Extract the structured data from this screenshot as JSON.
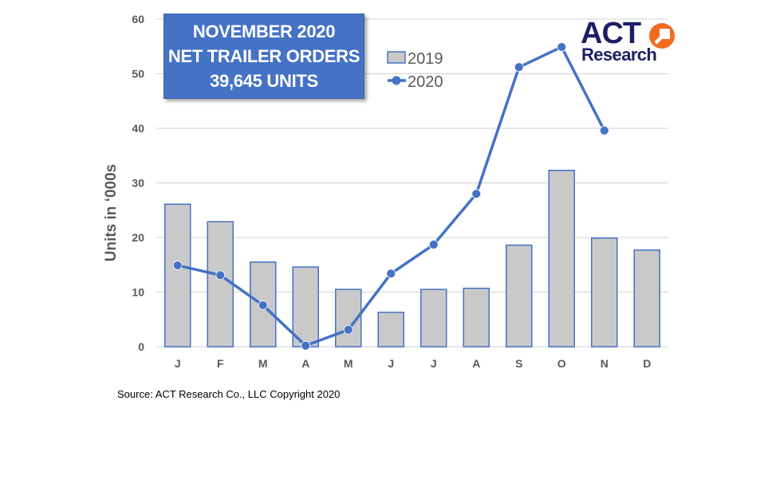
{
  "title_box": {
    "line1": "NOVEMBER 2020",
    "line2": "NET TRAILER ORDERS",
    "line3": "39,645 UNITS"
  },
  "logo": {
    "top": "ACT",
    "bottom": "Research",
    "icon": "arrow-circle-icon"
  },
  "source": "Source: ACT Research Co., LLC  Copyright 2020",
  "colors": {
    "bar_fill": "#C9C9C9",
    "bar_stroke": "#4472C4",
    "line": "#4472C4",
    "title_bg": "#4472C4",
    "gridline": "#D9D9D9",
    "axis_text": "#595959",
    "logo_navy": "#1E1E66",
    "logo_orange": "#F26B21"
  },
  "chart_data": {
    "type": "bar+line",
    "title": "NOVEMBER 2020 NET TRAILER ORDERS 39,645 UNITS",
    "xlabel": "",
    "ylabel": "Units in ‘000s",
    "ylim": [
      0,
      60
    ],
    "yticks": [
      0,
      10,
      20,
      30,
      40,
      50,
      60
    ],
    "grid": true,
    "legend_position": "top-center",
    "categories": [
      "J",
      "F",
      "M",
      "A",
      "M",
      "J",
      "J",
      "A",
      "S",
      "O",
      "N",
      "D"
    ],
    "series": [
      {
        "name": "2019",
        "type": "bar",
        "values": [
          26.1,
          22.9,
          15.5,
          14.6,
          10.5,
          6.3,
          10.5,
          10.7,
          18.6,
          32.3,
          19.9,
          17.7
        ]
      },
      {
        "name": "2020",
        "type": "line",
        "values": [
          14.9,
          13.1,
          7.6,
          0.2,
          3.1,
          13.4,
          18.7,
          28.0,
          51.2,
          54.9,
          39.6,
          null
        ]
      }
    ],
    "annotations": [
      "NOVEMBER 2020",
      "NET TRAILER ORDERS",
      "39,645 UNITS"
    ]
  }
}
